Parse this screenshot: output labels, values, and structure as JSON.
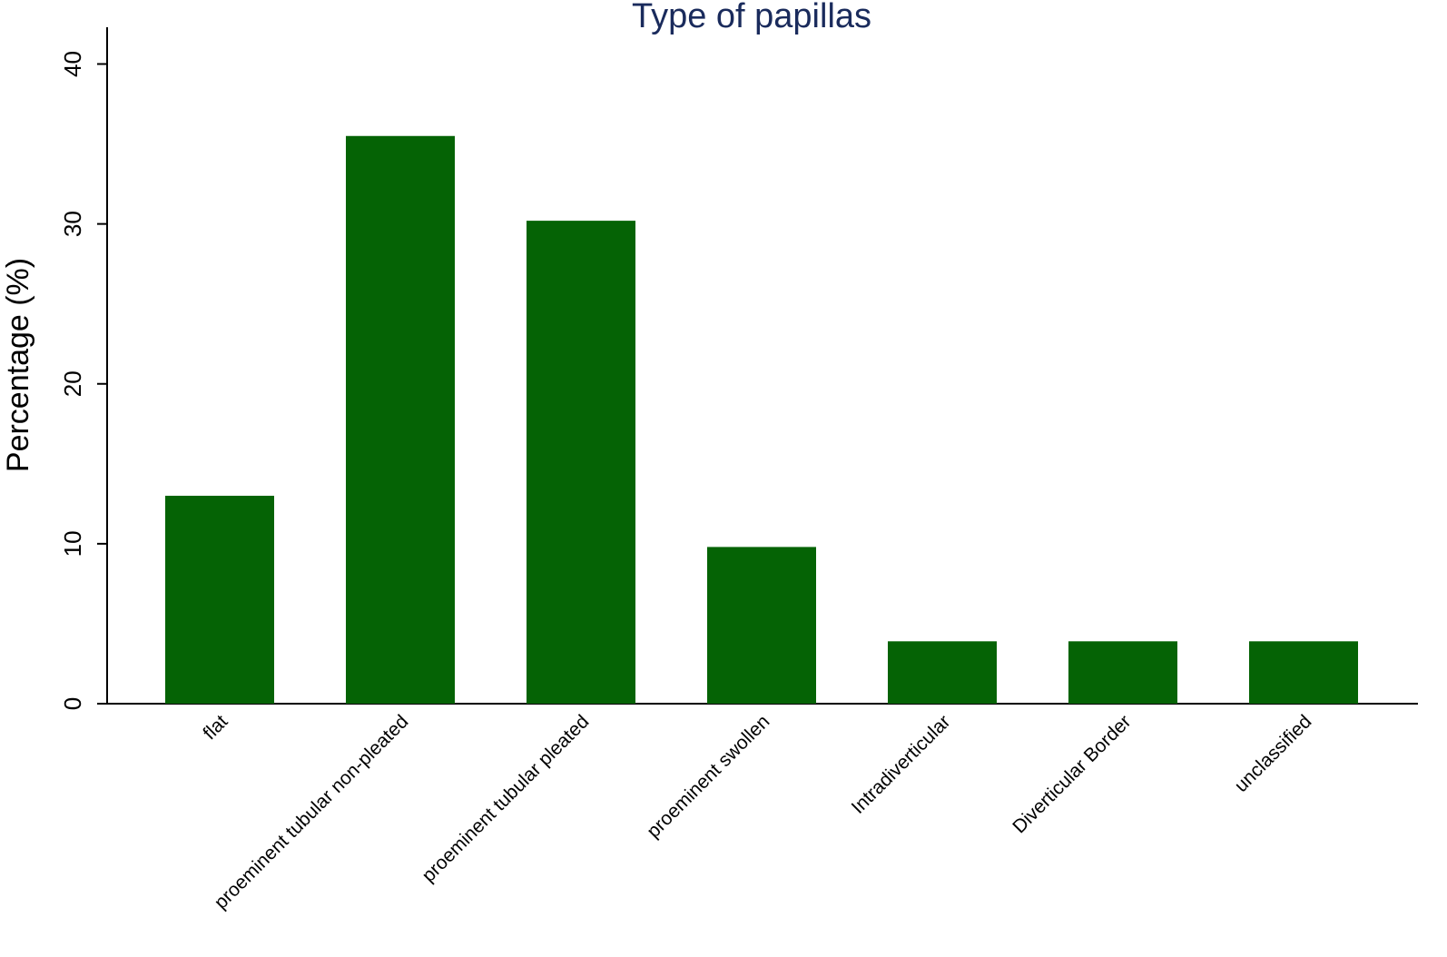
{
  "chart_data": {
    "type": "bar",
    "title": "Type of papillas",
    "y_label": "Percentage (%)",
    "categories": [
      "flat",
      "proeminent tubular non-pleated",
      "proeminent tubular pleated",
      "proeminent swollen",
      "Intradiverticular",
      "Diverticular Border",
      "unclassified"
    ],
    "values": [
      13.0,
      35.5,
      30.2,
      9.8,
      3.9,
      3.9,
      3.9
    ],
    "color": "#056305",
    "ylim": [
      0,
      42.3
    ],
    "yticks": [
      0,
      10,
      20,
      30,
      40
    ],
    "grid": false
  }
}
